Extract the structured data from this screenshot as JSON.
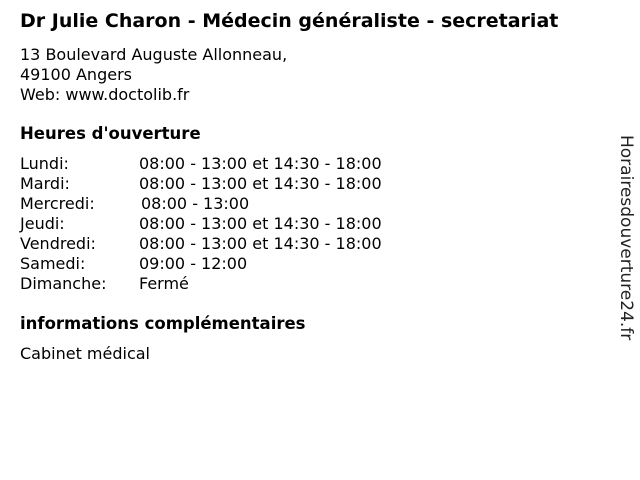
{
  "title": "Dr Julie Charon - Médecin généraliste - secretariat",
  "address": [
    "13 Boulevard Auguste Allonneau,",
    "49100 Angers",
    "Web: www.doctolib.fr"
  ],
  "hours_heading": "Heures d'ouverture",
  "hours": [
    {
      "day": "Lundi:",
      "time": "08:00 - 13:00 et 14:30 - 18:00"
    },
    {
      "day": "Mardi:",
      "time": "08:00 - 13:00 et 14:30 - 18:00"
    },
    {
      "day": "Mercredi:",
      "time": "08:00 - 13:00"
    },
    {
      "day": "Jeudi:",
      "time": "08:00 - 13:00 et 14:30 - 18:00"
    },
    {
      "day": "Vendredi:",
      "time": "08:00 - 13:00 et 14:30 - 18:00"
    },
    {
      "day": "Samedi:",
      "time": "09:00 - 12:00"
    },
    {
      "day": "Dimanche:",
      "time": "Fermé"
    }
  ],
  "info_heading": "informations complémentaires",
  "info_text": "Cabinet médical",
  "watermark": "Horairesdouverture24.fr"
}
